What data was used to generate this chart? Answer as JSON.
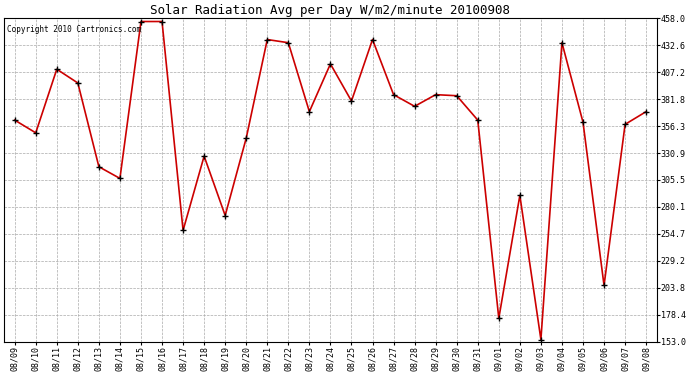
{
  "title": "Solar Radiation Avg per Day W/m2/minute 20100908",
  "copyright_text": "Copyright 2010 Cartronics.com",
  "labels": [
    "08/09",
    "08/10",
    "08/11",
    "08/12",
    "08/13",
    "08/14",
    "08/15",
    "08/16",
    "08/17",
    "08/18",
    "08/19",
    "08/20",
    "08/21",
    "08/22",
    "08/23",
    "08/24",
    "08/25",
    "08/26",
    "08/27",
    "08/28",
    "08/29",
    "08/30",
    "08/31",
    "09/01",
    "09/02",
    "09/03",
    "09/04",
    "09/05",
    "09/06",
    "09/07",
    "09/08"
  ],
  "values": [
    362,
    350,
    410,
    397,
    318,
    307,
    455,
    455,
    258,
    328,
    272,
    345,
    438,
    435,
    370,
    415,
    380,
    438,
    386,
    375,
    386,
    385,
    362,
    175,
    291,
    155,
    435,
    360,
    206,
    358,
    370
  ],
  "y_ticks": [
    153.0,
    178.4,
    203.8,
    229.2,
    254.7,
    280.1,
    305.5,
    330.9,
    356.3,
    381.8,
    407.2,
    432.6,
    458.0
  ],
  "ylim": [
    153.0,
    458.0
  ],
  "line_color": "#cc0000",
  "marker": "+",
  "marker_color": "#000000",
  "marker_size": 4,
  "bg_color": "#ffffff",
  "grid_color": "#aaaaaa",
  "title_fontsize": 9,
  "tick_fontsize": 6,
  "copyright_fontsize": 5.5
}
